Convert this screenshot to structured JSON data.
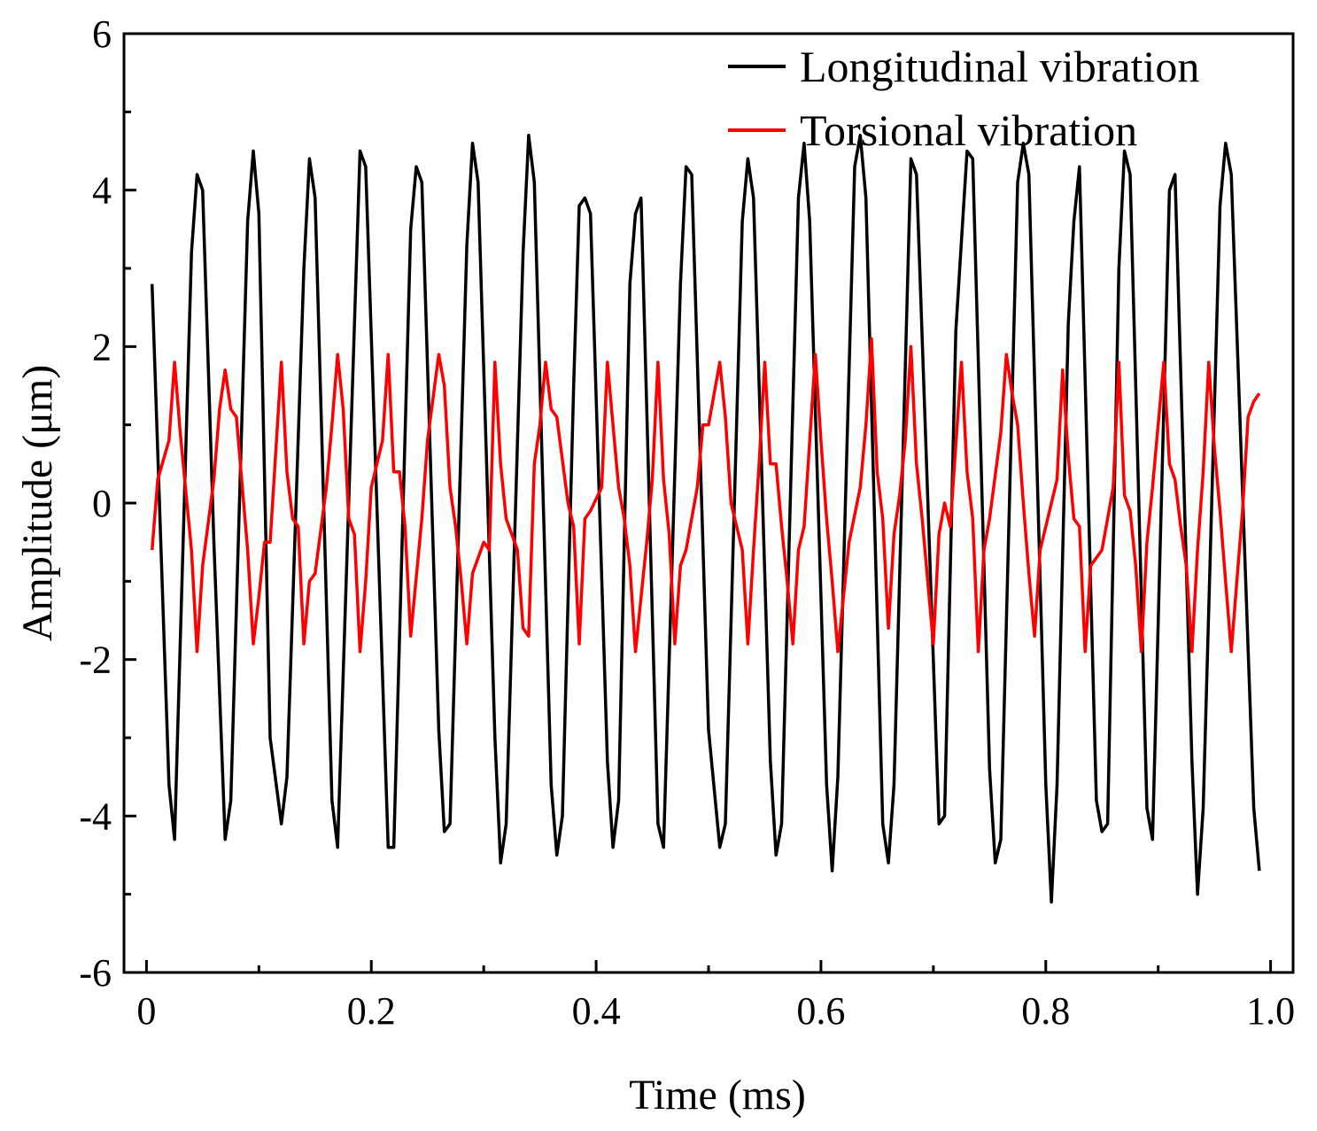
{
  "chart_data": {
    "type": "line",
    "title": "",
    "xlabel": "Time (ms)",
    "ylabel": "Amplitude (μm)",
    "xlim": [
      -0.02,
      1.02
    ],
    "ylim": [
      -6,
      6
    ],
    "x_ticks": [
      0,
      0.2,
      0.4,
      0.6,
      0.8,
      1.0
    ],
    "x_tick_labels": [
      "0",
      "0.2",
      "0.4",
      "0.6",
      "0.8",
      "1.0"
    ],
    "y_ticks": [
      -6,
      -4,
      -2,
      0,
      2,
      4,
      6
    ],
    "y_tick_labels": [
      "-6",
      "-4",
      "-2",
      "0",
      "2",
      "4",
      "6"
    ],
    "grid": false,
    "legend_position": "top-right",
    "series": [
      {
        "name": "Longitudinal vibration",
        "color": "#000000",
        "points": [
          [
            0.005,
            2.8
          ],
          [
            0.02,
            -3.6
          ],
          [
            0.025,
            -4.3
          ],
          [
            0.04,
            3.2
          ],
          [
            0.045,
            4.2
          ],
          [
            0.05,
            4.0
          ],
          [
            0.06,
            -0.5
          ],
          [
            0.07,
            -4.3
          ],
          [
            0.075,
            -3.8
          ],
          [
            0.09,
            3.6
          ],
          [
            0.095,
            4.5
          ],
          [
            0.1,
            3.7
          ],
          [
            0.11,
            -3.0
          ],
          [
            0.12,
            -4.1
          ],
          [
            0.125,
            -3.5
          ],
          [
            0.14,
            3.0
          ],
          [
            0.145,
            4.4
          ],
          [
            0.15,
            3.9
          ],
          [
            0.165,
            -3.8
          ],
          [
            0.17,
            -4.4
          ],
          [
            0.19,
            4.5
          ],
          [
            0.195,
            4.3
          ],
          [
            0.215,
            -4.4
          ],
          [
            0.22,
            -4.4
          ],
          [
            0.235,
            3.5
          ],
          [
            0.24,
            4.3
          ],
          [
            0.245,
            4.1
          ],
          [
            0.26,
            -2.9
          ],
          [
            0.265,
            -4.2
          ],
          [
            0.27,
            -4.1
          ],
          [
            0.285,
            3.3
          ],
          [
            0.29,
            4.6
          ],
          [
            0.295,
            4.1
          ],
          [
            0.31,
            -3.0
          ],
          [
            0.315,
            -4.6
          ],
          [
            0.32,
            -4.1
          ],
          [
            0.335,
            3.2
          ],
          [
            0.34,
            4.7
          ],
          [
            0.345,
            4.1
          ],
          [
            0.36,
            -3.6
          ],
          [
            0.365,
            -4.5
          ],
          [
            0.37,
            -4.0
          ],
          [
            0.38,
            1.5
          ],
          [
            0.385,
            3.8
          ],
          [
            0.39,
            3.9
          ],
          [
            0.395,
            3.7
          ],
          [
            0.41,
            -3.3
          ],
          [
            0.415,
            -4.4
          ],
          [
            0.42,
            -3.8
          ],
          [
            0.43,
            2.8
          ],
          [
            0.435,
            3.7
          ],
          [
            0.44,
            3.9
          ],
          [
            0.455,
            -4.1
          ],
          [
            0.46,
            -4.4
          ],
          [
            0.475,
            2.8
          ],
          [
            0.48,
            4.3
          ],
          [
            0.485,
            4.2
          ],
          [
            0.5,
            -2.9
          ],
          [
            0.51,
            -4.4
          ],
          [
            0.515,
            -4.1
          ],
          [
            0.53,
            3.6
          ],
          [
            0.535,
            4.4
          ],
          [
            0.54,
            3.9
          ],
          [
            0.555,
            -3.3
          ],
          [
            0.56,
            -4.5
          ],
          [
            0.565,
            -4.1
          ],
          [
            0.58,
            3.9
          ],
          [
            0.585,
            4.6
          ],
          [
            0.59,
            3.6
          ],
          [
            0.605,
            -3.6
          ],
          [
            0.61,
            -4.7
          ],
          [
            0.615,
            -3.5
          ],
          [
            0.63,
            4.3
          ],
          [
            0.635,
            4.7
          ],
          [
            0.64,
            3.9
          ],
          [
            0.655,
            -4.1
          ],
          [
            0.66,
            -4.6
          ],
          [
            0.665,
            -3.6
          ],
          [
            0.68,
            4.4
          ],
          [
            0.685,
            4.2
          ],
          [
            0.7,
            -2.0
          ],
          [
            0.705,
            -4.1
          ],
          [
            0.71,
            -4.0
          ],
          [
            0.72,
            2.2
          ],
          [
            0.73,
            4.5
          ],
          [
            0.735,
            4.4
          ],
          [
            0.75,
            -3.4
          ],
          [
            0.755,
            -4.6
          ],
          [
            0.76,
            -4.3
          ],
          [
            0.775,
            4.1
          ],
          [
            0.78,
            4.6
          ],
          [
            0.785,
            4.2
          ],
          [
            0.8,
            -3.6
          ],
          [
            0.805,
            -5.1
          ],
          [
            0.81,
            -3.6
          ],
          [
            0.82,
            2.3
          ],
          [
            0.825,
            3.6
          ],
          [
            0.83,
            4.3
          ],
          [
            0.845,
            -3.8
          ],
          [
            0.85,
            -4.2
          ],
          [
            0.855,
            -4.1
          ],
          [
            0.865,
            3.0
          ],
          [
            0.87,
            4.5
          ],
          [
            0.875,
            4.2
          ],
          [
            0.89,
            -3.9
          ],
          [
            0.895,
            -4.3
          ],
          [
            0.905,
            1.2
          ],
          [
            0.91,
            4.0
          ],
          [
            0.915,
            4.2
          ],
          [
            0.93,
            -3.3
          ],
          [
            0.935,
            -5.0
          ],
          [
            0.94,
            -3.9
          ],
          [
            0.955,
            3.8
          ],
          [
            0.96,
            4.6
          ],
          [
            0.965,
            4.2
          ],
          [
            0.985,
            -3.9
          ],
          [
            0.99,
            -4.7
          ]
        ]
      },
      {
        "name": "Torsional vibration",
        "color": "#ff0000",
        "points": [
          [
            0.005,
            -0.6
          ],
          [
            0.01,
            0.3
          ],
          [
            0.02,
            0.8
          ],
          [
            0.025,
            1.8
          ],
          [
            0.03,
            0.9
          ],
          [
            0.04,
            -0.6
          ],
          [
            0.045,
            -1.9
          ],
          [
            0.05,
            -0.8
          ],
          [
            0.06,
            0.3
          ],
          [
            0.065,
            1.2
          ],
          [
            0.07,
            1.7
          ],
          [
            0.075,
            1.2
          ],
          [
            0.08,
            1.1
          ],
          [
            0.09,
            -0.6
          ],
          [
            0.095,
            -1.8
          ],
          [
            0.1,
            -1.2
          ],
          [
            0.105,
            -0.5
          ],
          [
            0.11,
            -0.5
          ],
          [
            0.12,
            1.8
          ],
          [
            0.125,
            0.4
          ],
          [
            0.13,
            -0.2
          ],
          [
            0.135,
            -0.3
          ],
          [
            0.14,
            -1.8
          ],
          [
            0.145,
            -1.0
          ],
          [
            0.15,
            -0.9
          ],
          [
            0.16,
            0.2
          ],
          [
            0.165,
            1.0
          ],
          [
            0.17,
            1.9
          ],
          [
            0.175,
            1.2
          ],
          [
            0.18,
            -0.2
          ],
          [
            0.185,
            -0.4
          ],
          [
            0.19,
            -1.9
          ],
          [
            0.195,
            -1.0
          ],
          [
            0.2,
            0.2
          ],
          [
            0.21,
            0.8
          ],
          [
            0.215,
            1.9
          ],
          [
            0.22,
            0.4
          ],
          [
            0.225,
            0.4
          ],
          [
            0.23,
            -0.3
          ],
          [
            0.235,
            -1.7
          ],
          [
            0.245,
            -0.2
          ],
          [
            0.25,
            0.8
          ],
          [
            0.26,
            1.9
          ],
          [
            0.265,
            1.5
          ],
          [
            0.27,
            0.2
          ],
          [
            0.275,
            -0.3
          ],
          [
            0.28,
            -1.0
          ],
          [
            0.285,
            -1.8
          ],
          [
            0.29,
            -0.9
          ],
          [
            0.3,
            -0.5
          ],
          [
            0.305,
            -0.6
          ],
          [
            0.31,
            1.8
          ],
          [
            0.315,
            0.5
          ],
          [
            0.32,
            -0.2
          ],
          [
            0.33,
            -0.6
          ],
          [
            0.335,
            -1.6
          ],
          [
            0.34,
            -1.7
          ],
          [
            0.345,
            0.5
          ],
          [
            0.35,
            1.0
          ],
          [
            0.355,
            1.8
          ],
          [
            0.36,
            1.2
          ],
          [
            0.365,
            1.1
          ],
          [
            0.375,
            0.0
          ],
          [
            0.38,
            -0.3
          ],
          [
            0.385,
            -1.8
          ],
          [
            0.39,
            -0.2
          ],
          [
            0.395,
            -0.1
          ],
          [
            0.405,
            0.2
          ],
          [
            0.41,
            1.8
          ],
          [
            0.415,
            1.0
          ],
          [
            0.42,
            0.2
          ],
          [
            0.425,
            -0.2
          ],
          [
            0.43,
            -0.8
          ],
          [
            0.435,
            -1.9
          ],
          [
            0.445,
            -0.5
          ],
          [
            0.45,
            0.3
          ],
          [
            0.455,
            1.8
          ],
          [
            0.46,
            0.3
          ],
          [
            0.465,
            -0.4
          ],
          [
            0.47,
            -1.8
          ],
          [
            0.475,
            -0.8
          ],
          [
            0.48,
            -0.6
          ],
          [
            0.49,
            0.2
          ],
          [
            0.495,
            1.0
          ],
          [
            0.5,
            1.0
          ],
          [
            0.51,
            1.8
          ],
          [
            0.515,
            1.1
          ],
          [
            0.52,
            0.0
          ],
          [
            0.53,
            -0.6
          ],
          [
            0.535,
            -1.8
          ],
          [
            0.54,
            -0.6
          ],
          [
            0.545,
            0.5
          ],
          [
            0.55,
            1.8
          ],
          [
            0.555,
            0.5
          ],
          [
            0.56,
            0.5
          ],
          [
            0.565,
            -0.3
          ],
          [
            0.57,
            -1.0
          ],
          [
            0.575,
            -1.8
          ],
          [
            0.58,
            -0.6
          ],
          [
            0.585,
            -0.3
          ],
          [
            0.595,
            1.9
          ],
          [
            0.6,
            0.8
          ],
          [
            0.605,
            -0.2
          ],
          [
            0.61,
            -1.0
          ],
          [
            0.615,
            -1.9
          ],
          [
            0.625,
            -0.5
          ],
          [
            0.635,
            0.2
          ],
          [
            0.64,
            1.0
          ],
          [
            0.645,
            2.1
          ],
          [
            0.65,
            0.4
          ],
          [
            0.655,
            -0.2
          ],
          [
            0.66,
            -1.6
          ],
          [
            0.665,
            -0.4
          ],
          [
            0.67,
            0.1
          ],
          [
            0.675,
            0.8
          ],
          [
            0.68,
            2.0
          ],
          [
            0.685,
            0.5
          ],
          [
            0.69,
            -0.2
          ],
          [
            0.7,
            -1.8
          ],
          [
            0.705,
            -0.4
          ],
          [
            0.71,
            0.0
          ],
          [
            0.715,
            -0.3
          ],
          [
            0.725,
            1.8
          ],
          [
            0.73,
            0.4
          ],
          [
            0.735,
            -0.2
          ],
          [
            0.74,
            -1.9
          ],
          [
            0.745,
            -0.6
          ],
          [
            0.75,
            -0.2
          ],
          [
            0.76,
            0.9
          ],
          [
            0.765,
            1.9
          ],
          [
            0.77,
            1.4
          ],
          [
            0.775,
            1.0
          ],
          [
            0.78,
            0.0
          ],
          [
            0.785,
            -0.9
          ],
          [
            0.79,
            -1.7
          ],
          [
            0.795,
            -0.6
          ],
          [
            0.8,
            -0.3
          ],
          [
            0.81,
            0.3
          ],
          [
            0.815,
            1.7
          ],
          [
            0.82,
            0.6
          ],
          [
            0.825,
            -0.2
          ],
          [
            0.83,
            -0.3
          ],
          [
            0.835,
            -1.9
          ],
          [
            0.84,
            -0.8
          ],
          [
            0.85,
            -0.6
          ],
          [
            0.86,
            0.2
          ],
          [
            0.865,
            1.8
          ],
          [
            0.87,
            0.1
          ],
          [
            0.875,
            -0.1
          ],
          [
            0.88,
            -0.8
          ],
          [
            0.885,
            -1.9
          ],
          [
            0.89,
            -0.5
          ],
          [
            0.895,
            0.2
          ],
          [
            0.905,
            1.8
          ],
          [
            0.91,
            0.5
          ],
          [
            0.915,
            0.3
          ],
          [
            0.92,
            -0.3
          ],
          [
            0.925,
            -0.8
          ],
          [
            0.93,
            -1.9
          ],
          [
            0.935,
            -0.6
          ],
          [
            0.94,
            0.4
          ],
          [
            0.945,
            1.8
          ],
          [
            0.95,
            0.7
          ],
          [
            0.955,
            -0.1
          ],
          [
            0.96,
            -1.0
          ],
          [
            0.965,
            -1.9
          ],
          [
            0.97,
            -1.0
          ],
          [
            0.975,
            -0.1
          ],
          [
            0.98,
            1.1
          ],
          [
            0.985,
            1.3
          ],
          [
            0.99,
            1.4
          ]
        ]
      }
    ]
  }
}
